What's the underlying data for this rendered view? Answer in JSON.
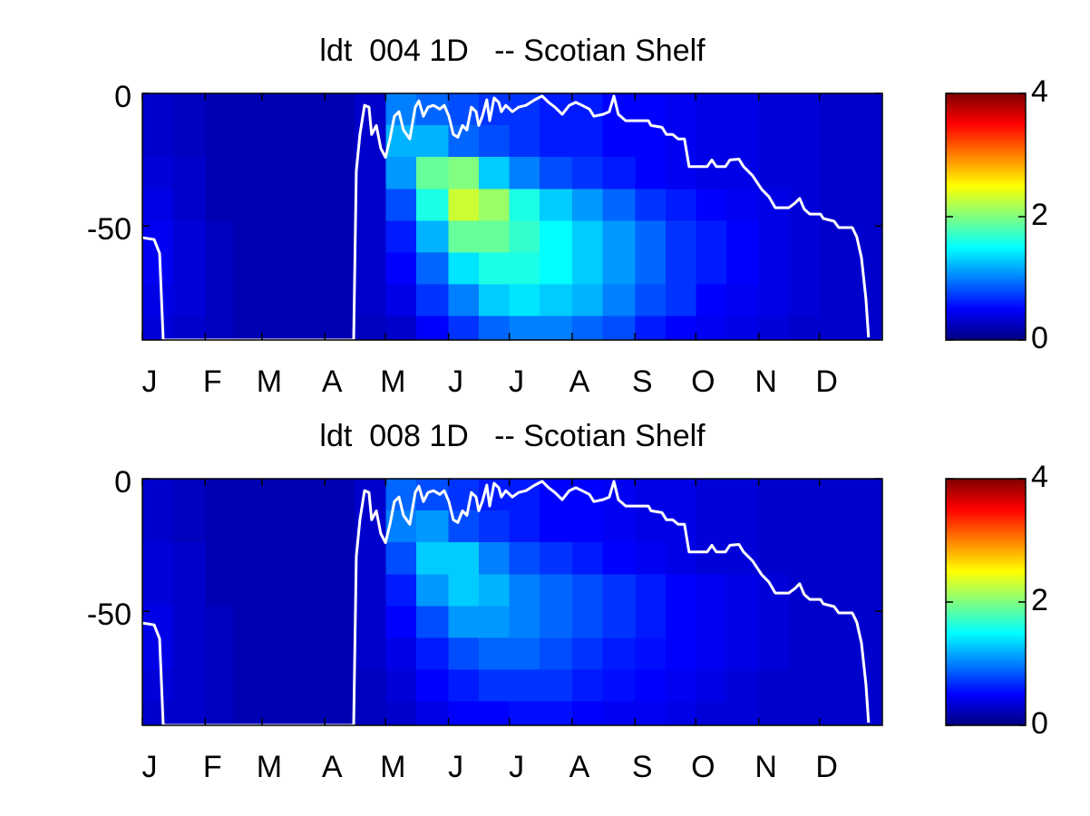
{
  "chart_data": [
    {
      "type": "heatmap",
      "title": "ldt  004 1D   -- Scotian Shelf",
      "x": [
        1,
        16,
        32,
        46,
        60,
        75,
        91,
        106,
        121,
        136,
        152,
        167,
        182,
        197,
        213,
        228,
        244,
        259,
        274,
        289,
        305,
        320,
        335,
        350,
        366
      ],
      "y": [
        0,
        -12,
        -24,
        -36,
        -48,
        -60,
        -72,
        -84,
        -93
      ],
      "z": [
        [
          0.3,
          0.25,
          0.2,
          0.2,
          0.2,
          0.2,
          0.2,
          0.3,
          1.0,
          0.9,
          0.8,
          0.7,
          0.7,
          0.6,
          0.6,
          0.5,
          0.5,
          0.45,
          0.4,
          0.4,
          0.35,
          0.35,
          0.3,
          0.3
        ],
        [
          0.3,
          0.25,
          0.2,
          0.2,
          0.2,
          0.2,
          0.2,
          0.3,
          1.2,
          1.2,
          0.9,
          0.8,
          0.7,
          0.6,
          0.6,
          0.5,
          0.5,
          0.45,
          0.4,
          0.4,
          0.35,
          0.35,
          0.3,
          0.3
        ],
        [
          0.35,
          0.3,
          0.2,
          0.2,
          0.2,
          0.2,
          0.2,
          0.3,
          1.1,
          1.9,
          2.0,
          1.3,
          1.0,
          0.8,
          0.7,
          0.6,
          0.5,
          0.45,
          0.4,
          0.4,
          0.35,
          0.35,
          0.3,
          0.3
        ],
        [
          0.4,
          0.3,
          0.2,
          0.2,
          0.2,
          0.2,
          0.2,
          0.3,
          0.8,
          1.6,
          2.3,
          2.1,
          1.6,
          1.3,
          1.1,
          0.9,
          0.7,
          0.6,
          0.5,
          0.45,
          0.4,
          0.35,
          0.3,
          0.3
        ],
        [
          0.45,
          0.35,
          0.25,
          0.2,
          0.2,
          0.2,
          0.2,
          0.3,
          0.6,
          1.2,
          1.9,
          1.9,
          1.7,
          1.5,
          1.3,
          1.1,
          0.9,
          0.7,
          0.6,
          0.5,
          0.4,
          0.35,
          0.3,
          0.3
        ],
        [
          0.45,
          0.35,
          0.25,
          0.2,
          0.2,
          0.2,
          0.2,
          0.3,
          0.5,
          0.9,
          1.4,
          1.6,
          1.6,
          1.5,
          1.3,
          1.1,
          0.9,
          0.7,
          0.6,
          0.5,
          0.4,
          0.35,
          0.3,
          0.3
        ],
        [
          0.4,
          0.35,
          0.25,
          0.2,
          0.2,
          0.2,
          0.2,
          0.3,
          0.4,
          0.7,
          1.0,
          1.3,
          1.4,
          1.3,
          1.2,
          1.0,
          0.8,
          0.7,
          0.5,
          0.45,
          0.4,
          0.35,
          0.3,
          0.3
        ],
        [
          0.35,
          0.3,
          0.25,
          0.2,
          0.2,
          0.2,
          0.2,
          0.25,
          0.3,
          0.5,
          0.7,
          0.9,
          1.0,
          1.0,
          0.9,
          0.8,
          0.6,
          0.5,
          0.45,
          0.4,
          0.35,
          0.3,
          0.3,
          0.3
        ]
      ],
      "colormap": "jet",
      "clim": [
        0,
        4
      ],
      "cticks": [
        0,
        2,
        4
      ],
      "xlim": [
        1,
        366
      ],
      "xticks": [
        {
          "value": 1,
          "label": "J"
        },
        {
          "value": 32,
          "label": "F"
        },
        {
          "value": 60,
          "label": "M"
        },
        {
          "value": 91,
          "label": "A"
        },
        {
          "value": 121,
          "label": "M"
        },
        {
          "value": 152,
          "label": "J"
        },
        {
          "value": 182,
          "label": "J"
        },
        {
          "value": 213,
          "label": "A"
        },
        {
          "value": 244,
          "label": "S"
        },
        {
          "value": 274,
          "label": "O"
        },
        {
          "value": 305,
          "label": "N"
        },
        {
          "value": 335,
          "label": "D"
        }
      ],
      "ylim": [
        -93,
        0
      ],
      "yticks": [
        0,
        -50
      ],
      "series": [
        {
          "type": "line",
          "color": "#ffffff",
          "x": [
            1,
            6.8,
            9.5,
            11.3,
            105.2,
            106.5,
            108.3,
            110.6,
            112.8,
            114.1,
            116.4,
            118.6,
            120.9,
            123.1,
            125.3,
            127.6,
            129.8,
            132.9,
            135.6,
            137.4,
            139.6,
            141.9,
            144.6,
            147.7,
            149.9,
            152.2,
            154.4,
            156.6,
            158.9,
            161.1,
            163.3,
            165.6,
            166.9,
            168.7,
            170.9,
            172.3,
            174.5,
            176.8,
            178.1,
            180.3,
            183.5,
            186.6,
            190.2,
            194.6,
            198.2,
            201.4,
            204.5,
            208.1,
            211.6,
            214.8,
            217.9,
            221.5,
            223.7,
            228.2,
            231.3,
            233.6,
            235.8,
            239.4,
            250.6,
            251.9,
            257.3,
            259.5,
            262.6,
            265.3,
            268.4,
            270.7,
            279.6,
            281.9,
            284.1,
            288.6,
            290.8,
            295.3,
            297.5,
            302.0,
            306.5,
            310.0,
            313.2,
            319.9,
            323.0,
            325.2,
            327.5,
            330.2,
            335.5,
            336.9,
            342.2,
            344.5,
            351.2,
            353.4,
            355.7,
            357.9,
            359.2
          ],
          "values": [
            -54.4,
            -55.1,
            -60.3,
            -93,
            -93,
            -29.3,
            -15.5,
            -4.5,
            -5.2,
            -15.5,
            -12.1,
            -20.7,
            -24.1,
            -17.2,
            -8.6,
            -6.9,
            -13.8,
            -17.2,
            -5.2,
            -2.8,
            -8.6,
            -5.2,
            -4.5,
            -5.9,
            -4.5,
            -8.6,
            -15.5,
            -16.5,
            -12.1,
            -13.8,
            -5.2,
            -6.9,
            -12.1,
            -8.6,
            -2.4,
            -10.3,
            -1.7,
            -3.4,
            -6.9,
            -4.5,
            -6.9,
            -5.2,
            -4.5,
            -2.4,
            -1.0,
            -3.4,
            -5.2,
            -7.9,
            -4.5,
            -3.4,
            -4.5,
            -5.9,
            -8.6,
            -7.9,
            -6.9,
            -1.0,
            -7.9,
            -10.3,
            -10.3,
            -12.1,
            -12.8,
            -15.5,
            -15.5,
            -17.2,
            -17.2,
            -27.6,
            -27.6,
            -25.1,
            -27.6,
            -27.6,
            -25.1,
            -24.8,
            -27.6,
            -31.0,
            -36.2,
            -38.9,
            -43.1,
            -43.1,
            -41.3,
            -39.6,
            -43.7,
            -45.5,
            -45.5,
            -47.2,
            -48.2,
            -50.6,
            -50.6,
            -54.1,
            -62.0,
            -77.5,
            -92
          ]
        }
      ]
    },
    {
      "type": "heatmap",
      "title": "ldt  008 1D   -- Scotian Shelf",
      "x": [
        1,
        16,
        32,
        46,
        60,
        75,
        91,
        106,
        121,
        136,
        152,
        167,
        182,
        197,
        213,
        228,
        244,
        259,
        274,
        289,
        305,
        320,
        335,
        350,
        366
      ],
      "y": [
        0,
        -12,
        -24,
        -36,
        -48,
        -60,
        -72,
        -84,
        -93
      ],
      "z": [
        [
          0.3,
          0.25,
          0.2,
          0.2,
          0.2,
          0.2,
          0.2,
          0.3,
          0.9,
          0.8,
          0.7,
          0.6,
          0.6,
          0.5,
          0.5,
          0.45,
          0.4,
          0.4,
          0.35,
          0.35,
          0.3,
          0.3,
          0.3,
          0.3
        ],
        [
          0.3,
          0.25,
          0.2,
          0.2,
          0.2,
          0.2,
          0.2,
          0.3,
          1.0,
          1.1,
          0.8,
          0.7,
          0.6,
          0.5,
          0.5,
          0.45,
          0.4,
          0.4,
          0.35,
          0.35,
          0.3,
          0.3,
          0.3,
          0.3
        ],
        [
          0.35,
          0.3,
          0.2,
          0.2,
          0.2,
          0.2,
          0.2,
          0.3,
          0.8,
          1.3,
          1.3,
          1.0,
          0.8,
          0.7,
          0.6,
          0.5,
          0.45,
          0.4,
          0.35,
          0.35,
          0.3,
          0.3,
          0.3,
          0.3
        ],
        [
          0.35,
          0.3,
          0.2,
          0.2,
          0.2,
          0.2,
          0.2,
          0.3,
          0.6,
          1.1,
          1.3,
          1.2,
          1.0,
          0.9,
          0.8,
          0.7,
          0.6,
          0.5,
          0.45,
          0.4,
          0.35,
          0.3,
          0.3,
          0.3
        ],
        [
          0.4,
          0.3,
          0.25,
          0.2,
          0.2,
          0.2,
          0.2,
          0.3,
          0.5,
          0.8,
          1.1,
          1.1,
          1.0,
          0.9,
          0.8,
          0.7,
          0.6,
          0.5,
          0.45,
          0.4,
          0.35,
          0.3,
          0.3,
          0.3
        ],
        [
          0.4,
          0.3,
          0.25,
          0.2,
          0.2,
          0.2,
          0.2,
          0.3,
          0.4,
          0.6,
          0.8,
          0.9,
          0.9,
          0.8,
          0.7,
          0.6,
          0.55,
          0.5,
          0.45,
          0.4,
          0.35,
          0.3,
          0.3,
          0.3
        ],
        [
          0.35,
          0.3,
          0.25,
          0.2,
          0.2,
          0.2,
          0.2,
          0.25,
          0.35,
          0.5,
          0.6,
          0.7,
          0.7,
          0.7,
          0.6,
          0.55,
          0.5,
          0.45,
          0.4,
          0.35,
          0.3,
          0.3,
          0.3,
          0.3
        ],
        [
          0.3,
          0.3,
          0.25,
          0.2,
          0.2,
          0.2,
          0.2,
          0.25,
          0.3,
          0.4,
          0.5,
          0.5,
          0.55,
          0.55,
          0.5,
          0.45,
          0.45,
          0.4,
          0.35,
          0.35,
          0.3,
          0.3,
          0.3,
          0.3
        ]
      ],
      "colormap": "jet",
      "clim": [
        0,
        4
      ],
      "cticks": [
        0,
        2,
        4
      ],
      "xlim": [
        1,
        366
      ],
      "xticks": [
        {
          "value": 1,
          "label": "J"
        },
        {
          "value": 32,
          "label": "F"
        },
        {
          "value": 60,
          "label": "M"
        },
        {
          "value": 91,
          "label": "A"
        },
        {
          "value": 121,
          "label": "M"
        },
        {
          "value": 152,
          "label": "J"
        },
        {
          "value": 182,
          "label": "J"
        },
        {
          "value": 213,
          "label": "A"
        },
        {
          "value": 244,
          "label": "S"
        },
        {
          "value": 274,
          "label": "O"
        },
        {
          "value": 305,
          "label": "N"
        },
        {
          "value": 335,
          "label": "D"
        }
      ],
      "ylim": [
        -93,
        0
      ],
      "yticks": [
        0,
        -50
      ],
      "series": [
        {
          "type": "line",
          "color": "#ffffff",
          "x": [
            1,
            6.8,
            9.5,
            11.3,
            105.2,
            106.5,
            108.3,
            110.6,
            112.8,
            114.1,
            116.4,
            118.6,
            120.9,
            123.1,
            125.3,
            127.6,
            129.8,
            132.9,
            135.6,
            137.4,
            139.6,
            141.9,
            144.6,
            147.7,
            149.9,
            152.2,
            154.4,
            156.6,
            158.9,
            161.1,
            163.3,
            165.6,
            166.9,
            168.7,
            170.9,
            172.3,
            174.5,
            176.8,
            178.1,
            180.3,
            183.5,
            186.6,
            190.2,
            194.6,
            198.2,
            201.4,
            204.5,
            208.1,
            211.6,
            214.8,
            217.9,
            221.5,
            223.7,
            228.2,
            231.3,
            233.6,
            235.8,
            239.4,
            250.6,
            251.9,
            257.3,
            259.5,
            262.6,
            265.3,
            268.4,
            270.7,
            279.6,
            281.9,
            284.1,
            288.6,
            290.8,
            295.3,
            297.5,
            302.0,
            306.5,
            310.0,
            313.2,
            319.9,
            323.0,
            325.2,
            327.5,
            330.2,
            335.5,
            336.9,
            342.2,
            344.5,
            351.2,
            353.4,
            355.7,
            357.9,
            359.2
          ],
          "values": [
            -54.4,
            -55.1,
            -60.3,
            -93,
            -93,
            -29.3,
            -15.5,
            -4.5,
            -5.2,
            -15.5,
            -12.1,
            -20.7,
            -24.1,
            -17.2,
            -8.6,
            -6.9,
            -13.8,
            -17.2,
            -5.2,
            -2.8,
            -8.6,
            -5.2,
            -4.5,
            -5.9,
            -4.5,
            -8.6,
            -15.5,
            -16.5,
            -12.1,
            -13.8,
            -5.2,
            -6.9,
            -12.1,
            -8.6,
            -2.4,
            -10.3,
            -1.7,
            -3.4,
            -6.9,
            -4.5,
            -6.9,
            -5.2,
            -4.5,
            -2.4,
            -1.0,
            -3.4,
            -5.2,
            -7.9,
            -4.5,
            -3.4,
            -4.5,
            -5.9,
            -8.6,
            -7.9,
            -6.9,
            -1.0,
            -7.9,
            -10.3,
            -10.3,
            -12.1,
            -12.8,
            -15.5,
            -15.5,
            -17.2,
            -17.2,
            -27.6,
            -27.6,
            -25.1,
            -27.6,
            -27.6,
            -25.1,
            -24.8,
            -27.6,
            -31.0,
            -36.2,
            -38.9,
            -43.1,
            -43.1,
            -41.3,
            -39.6,
            -43.7,
            -45.5,
            -45.5,
            -47.2,
            -48.2,
            -50.6,
            -50.6,
            -54.1,
            -62.0,
            -77.5,
            -92
          ]
        }
      ]
    }
  ]
}
